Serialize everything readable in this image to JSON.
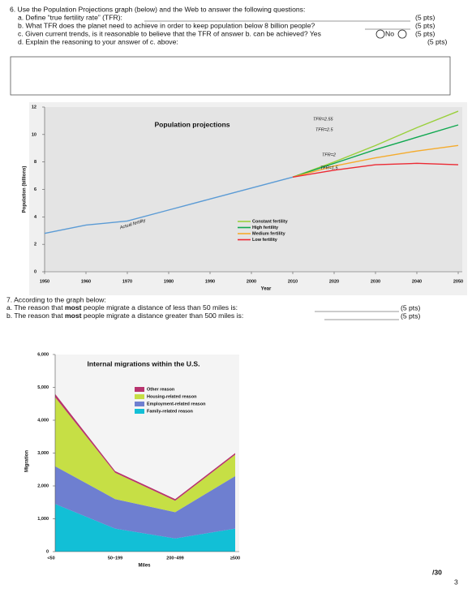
{
  "q6": {
    "intro": "6. Use the Population Projections graph (below) and the Web to answer the following questions:",
    "a": "a. Define “true fertility rate” (TFR):",
    "a_pts": "(5 pts)",
    "b": "b. What TFR does the planet need to achieve in order to keep population below 8 billion people?",
    "b_pts": "(5 pts)",
    "c": "c. Given current trends, is it reasonable to believe that the TFR of answer b. can be achieved? Yes",
    "c_no": "No",
    "c_pts": "(5 pts)",
    "d": "d. Explain the reasoning to your answer of c. above:",
    "d_pts": "(5 pts)"
  },
  "q7": {
    "intro": "7. According to the graph below:",
    "a_pre": "a. The reason that ",
    "a_bold": "most",
    "a_post": " people migrate a distance of less than 50 miles is:",
    "a_pts": "(5 pts)",
    "b_pre": "b. The reason that ",
    "b_bold": "most",
    "b_post": " people migrate a distance greater than 500 miles is:",
    "b_pts": "(5 pts)"
  },
  "chart_data": [
    {
      "type": "line",
      "title": "Population projections",
      "x_label": "Year",
      "y_label": "Population (billions)",
      "x": [
        1950,
        1960,
        1970,
        1980,
        1990,
        2000,
        2010,
        2020,
        2030,
        2040,
        2050
      ],
      "xlim": [
        1950,
        2050
      ],
      "xticks": [
        1950,
        1960,
        1970,
        1980,
        1990,
        2000,
        2010,
        2020,
        2030,
        2040,
        2050
      ],
      "ylim": [
        0,
        12
      ],
      "yticks": [
        0,
        2,
        4,
        6,
        8,
        10,
        12
      ],
      "series": [
        {
          "name": "Actual fertility",
          "color": "#5b9bd5",
          "values": [
            2.8,
            3.4,
            3.7,
            4.5,
            5.3,
            6.1,
            6.9,
            null,
            null,
            null,
            null
          ]
        },
        {
          "name": "Constant fertility",
          "color": "#9ad03c",
          "values": [
            null,
            null,
            null,
            null,
            null,
            null,
            6.9,
            8.0,
            9.2,
            10.5,
            11.7
          ]
        },
        {
          "name": "High fertility",
          "color": "#10a850",
          "values": [
            null,
            null,
            null,
            null,
            null,
            null,
            6.9,
            7.9,
            8.9,
            9.8,
            10.7
          ]
        },
        {
          "name": "Medium fertility",
          "color": "#f5ab2c",
          "values": [
            null,
            null,
            null,
            null,
            null,
            null,
            6.9,
            7.7,
            8.3,
            8.8,
            9.2
          ]
        },
        {
          "name": "Low fertility",
          "color": "#ec2a34",
          "values": [
            null,
            null,
            null,
            null,
            null,
            null,
            6.9,
            7.4,
            7.8,
            7.9,
            7.8
          ]
        }
      ],
      "legend": [
        "Constant fertility",
        "High fertility",
        "Medium fertility",
        "Low fertility"
      ],
      "annotations": [
        "TFR=2.55",
        "TFR=2.5",
        "TFR=2",
        "TFR=1.5",
        "Actual fertility"
      ]
    },
    {
      "type": "stacked_area",
      "title": "Internal migrations within the U.S.",
      "x_label": "Miles",
      "y_label": "Migration",
      "categories": [
        "<50",
        "50–199",
        "200–499",
        "≥500"
      ],
      "ylim": [
        0,
        6000
      ],
      "yticks": [
        0,
        {
          "value": 1000,
          "label": "1,000"
        },
        {
          "value": 2000,
          "label": "2,000"
        },
        {
          "value": 3000,
          "label": "3,000"
        },
        {
          "value": 4000,
          "label": "4,000"
        },
        {
          "value": 5000,
          "label": "5,000"
        },
        {
          "value": 6000,
          "label": "6,000"
        }
      ],
      "series": [
        {
          "name": "Family-related reason",
          "color": "#12bfd6",
          "values": [
            1450,
            700,
            400,
            700
          ]
        },
        {
          "name": "Employment-related reason",
          "color": "#6e7fd0",
          "values": [
            1150,
            900,
            800,
            1600
          ]
        },
        {
          "name": "Housing-related reason",
          "color": "#c6df45",
          "values": [
            2100,
            800,
            350,
            650
          ]
        },
        {
          "name": "Other reason",
          "color": "#b8336e",
          "values": [
            100,
            50,
            50,
            50
          ]
        }
      ]
    }
  ],
  "page": {
    "score": "/30",
    "number": "3"
  }
}
